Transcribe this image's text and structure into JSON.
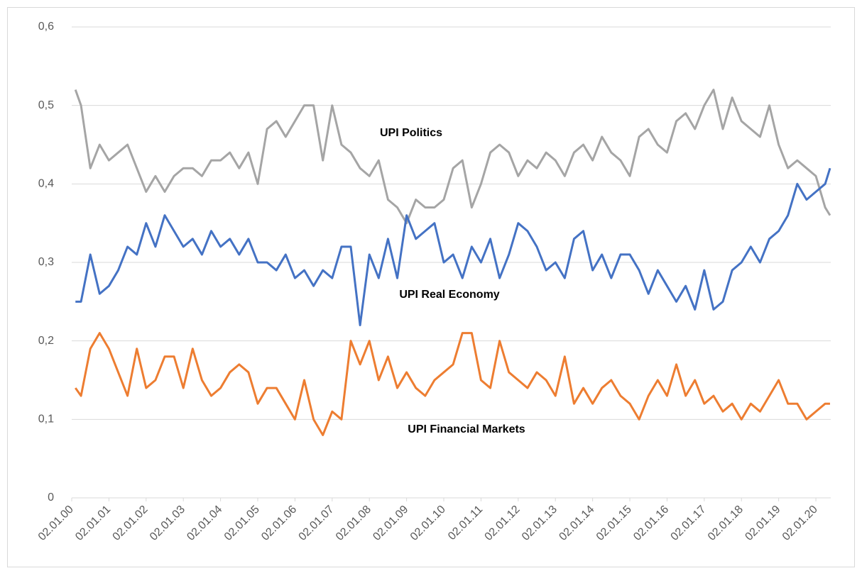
{
  "chart_data": {
    "type": "line",
    "x": [
      2000.1,
      2000.25,
      2000.5,
      2000.75,
      2001,
      2001.25,
      2001.5,
      2001.75,
      2002,
      2002.25,
      2002.5,
      2002.75,
      2003,
      2003.25,
      2003.5,
      2003.75,
      2004,
      2004.25,
      2004.5,
      2004.75,
      2005,
      2005.25,
      2005.5,
      2005.75,
      2006,
      2006.25,
      2006.5,
      2006.75,
      2007,
      2007.25,
      2007.5,
      2007.75,
      2008,
      2008.25,
      2008.5,
      2008.75,
      2009,
      2009.25,
      2009.5,
      2009.75,
      2010,
      2010.25,
      2010.5,
      2010.75,
      2011,
      2011.25,
      2011.5,
      2011.75,
      2012,
      2012.25,
      2012.5,
      2012.75,
      2013,
      2013.25,
      2013.5,
      2013.75,
      2014,
      2014.25,
      2014.5,
      2014.75,
      2015,
      2015.25,
      2015.5,
      2015.75,
      2016,
      2016.25,
      2016.5,
      2016.75,
      2017,
      2017.25,
      2017.5,
      2017.75,
      2018,
      2018.25,
      2018.5,
      2018.75,
      2019,
      2019.25,
      2019.5,
      2019.75,
      2020,
      2020.25,
      2020.38
    ],
    "series": [
      {
        "name": "UPI Politics",
        "color": "#a5a5a5",
        "values": [
          0.52,
          0.5,
          0.42,
          0.45,
          0.43,
          0.44,
          0.45,
          0.42,
          0.39,
          0.41,
          0.39,
          0.41,
          0.42,
          0.42,
          0.41,
          0.43,
          0.43,
          0.44,
          0.42,
          0.44,
          0.4,
          0.47,
          0.48,
          0.46,
          0.48,
          0.5,
          0.5,
          0.43,
          0.5,
          0.45,
          0.44,
          0.42,
          0.41,
          0.43,
          0.38,
          0.37,
          0.35,
          0.38,
          0.37,
          0.37,
          0.38,
          0.42,
          0.43,
          0.37,
          0.4,
          0.44,
          0.45,
          0.44,
          0.41,
          0.43,
          0.42,
          0.44,
          0.43,
          0.41,
          0.44,
          0.45,
          0.43,
          0.46,
          0.44,
          0.43,
          0.41,
          0.46,
          0.47,
          0.45,
          0.44,
          0.48,
          0.49,
          0.47,
          0.5,
          0.52,
          0.47,
          0.51,
          0.48,
          0.47,
          0.46,
          0.5,
          0.45,
          0.42,
          0.43,
          0.42,
          0.41,
          0.37,
          0.36
        ]
      },
      {
        "name": "UPI Real Economy",
        "color": "#4472c4",
        "values": [
          0.25,
          0.25,
          0.31,
          0.26,
          0.27,
          0.29,
          0.32,
          0.31,
          0.35,
          0.32,
          0.36,
          0.34,
          0.32,
          0.33,
          0.31,
          0.34,
          0.32,
          0.33,
          0.31,
          0.33,
          0.3,
          0.3,
          0.29,
          0.31,
          0.28,
          0.29,
          0.27,
          0.29,
          0.28,
          0.32,
          0.32,
          0.22,
          0.31,
          0.28,
          0.33,
          0.28,
          0.36,
          0.33,
          0.34,
          0.35,
          0.3,
          0.31,
          0.28,
          0.32,
          0.3,
          0.33,
          0.28,
          0.31,
          0.35,
          0.34,
          0.32,
          0.29,
          0.3,
          0.28,
          0.33,
          0.34,
          0.29,
          0.31,
          0.28,
          0.31,
          0.31,
          0.29,
          0.26,
          0.29,
          0.27,
          0.25,
          0.27,
          0.24,
          0.29,
          0.24,
          0.25,
          0.29,
          0.3,
          0.32,
          0.3,
          0.33,
          0.34,
          0.36,
          0.4,
          0.38,
          0.39,
          0.4,
          0.42
        ]
      },
      {
        "name": "UPI Financial Markets",
        "color": "#ed7d31",
        "values": [
          0.14,
          0.13,
          0.19,
          0.21,
          0.19,
          0.16,
          0.13,
          0.19,
          0.14,
          0.15,
          0.18,
          0.18,
          0.14,
          0.19,
          0.15,
          0.13,
          0.14,
          0.16,
          0.17,
          0.16,
          0.12,
          0.14,
          0.14,
          0.12,
          0.1,
          0.15,
          0.1,
          0.08,
          0.11,
          0.1,
          0.2,
          0.17,
          0.2,
          0.15,
          0.18,
          0.14,
          0.16,
          0.14,
          0.13,
          0.15,
          0.16,
          0.17,
          0.21,
          0.21,
          0.15,
          0.14,
          0.2,
          0.16,
          0.15,
          0.14,
          0.16,
          0.15,
          0.13,
          0.18,
          0.12,
          0.14,
          0.12,
          0.14,
          0.15,
          0.13,
          0.12,
          0.1,
          0.13,
          0.15,
          0.13,
          0.17,
          0.13,
          0.15,
          0.12,
          0.13,
          0.11,
          0.12,
          0.1,
          0.12,
          0.11,
          0.13,
          0.15,
          0.12,
          0.12,
          0.1,
          0.11,
          0.12,
          0.12
        ]
      }
    ],
    "xlim": [
      2000,
      2020.4
    ],
    "xticks": [
      {
        "value": 2000,
        "label": "02.01.00"
      },
      {
        "value": 2001,
        "label": "02.01.01"
      },
      {
        "value": 2002,
        "label": "02.01.02"
      },
      {
        "value": 2003,
        "label": "02.01.03"
      },
      {
        "value": 2004,
        "label": "02.01.04"
      },
      {
        "value": 2005,
        "label": "02.01.05"
      },
      {
        "value": 2006,
        "label": "02.01.06"
      },
      {
        "value": 2007,
        "label": "02.01.07"
      },
      {
        "value": 2008,
        "label": "02.01.08"
      },
      {
        "value": 2009,
        "label": "02.01.09"
      },
      {
        "value": 2010,
        "label": "02.01.10"
      },
      {
        "value": 2011,
        "label": "02.01.11"
      },
      {
        "value": 2012,
        "label": "02.01.12"
      },
      {
        "value": 2013,
        "label": "02.01.13"
      },
      {
        "value": 2014,
        "label": "02.01.14"
      },
      {
        "value": 2015,
        "label": "02.01.15"
      },
      {
        "value": 2016,
        "label": "02.01.16"
      },
      {
        "value": 2017,
        "label": "02.01.17"
      },
      {
        "value": 2018,
        "label": "02.01.18"
      },
      {
        "value": 2019,
        "label": "02.01.19"
      },
      {
        "value": 2020,
        "label": "02.01.20"
      }
    ],
    "ylim": [
      0,
      0.6
    ],
    "yticks": [
      0,
      {
        "value": 0.1,
        "label": "0,1"
      },
      {
        "value": 0.2,
        "label": "0,2"
      },
      {
        "value": 0.3,
        "label": "0,3"
      },
      {
        "value": 0.4,
        "label": "0,4"
      },
      {
        "value": 0.5,
        "label": "0,5"
      },
      {
        "value": 0.6,
        "label": "0,6"
      }
    ],
    "grid": true
  }
}
